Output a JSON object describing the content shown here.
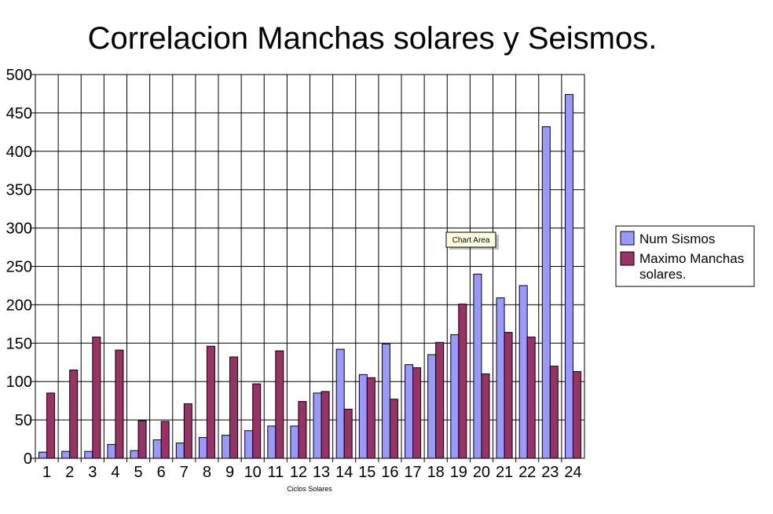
{
  "chart_data": {
    "type": "bar",
    "title": "Correlacion Manchas solares y Seismos.",
    "xlabel": "Ciclos Solares",
    "ylabel": "",
    "ylim": [
      0,
      500
    ],
    "yticks": [
      0,
      50,
      100,
      150,
      200,
      250,
      300,
      350,
      400,
      450,
      500
    ],
    "grid": true,
    "legend_position": "right",
    "categories": [
      "1",
      "2",
      "3",
      "4",
      "5",
      "6",
      "7",
      "8",
      "9",
      "10",
      "11",
      "12",
      "13",
      "14",
      "15",
      "16",
      "17",
      "18",
      "19",
      "20",
      "21",
      "22",
      "23",
      "24"
    ],
    "series": [
      {
        "name": "Num Sismos",
        "color": "#9999ff",
        "values": [
          8,
          9,
          9,
          18,
          10,
          24,
          20,
          27,
          30,
          36,
          42,
          42,
          85,
          142,
          109,
          149,
          122,
          135,
          161,
          240,
          209,
          225,
          432,
          474
        ]
      },
      {
        "name": "Maximo Manchas solares.",
        "color": "#993366",
        "values": [
          85,
          115,
          158,
          141,
          49,
          48,
          71,
          146,
          132,
          97,
          140,
          74,
          87,
          64,
          105,
          77,
          118,
          151,
          201,
          110,
          164,
          158,
          120,
          113
        ]
      }
    ],
    "legend": {
      "items": [
        {
          "line1": "Num Sismos",
          "line2": ""
        },
        {
          "line1": "Maximo Manchas",
          "line2": "solares."
        }
      ]
    },
    "tooltip": "Chart Area"
  }
}
